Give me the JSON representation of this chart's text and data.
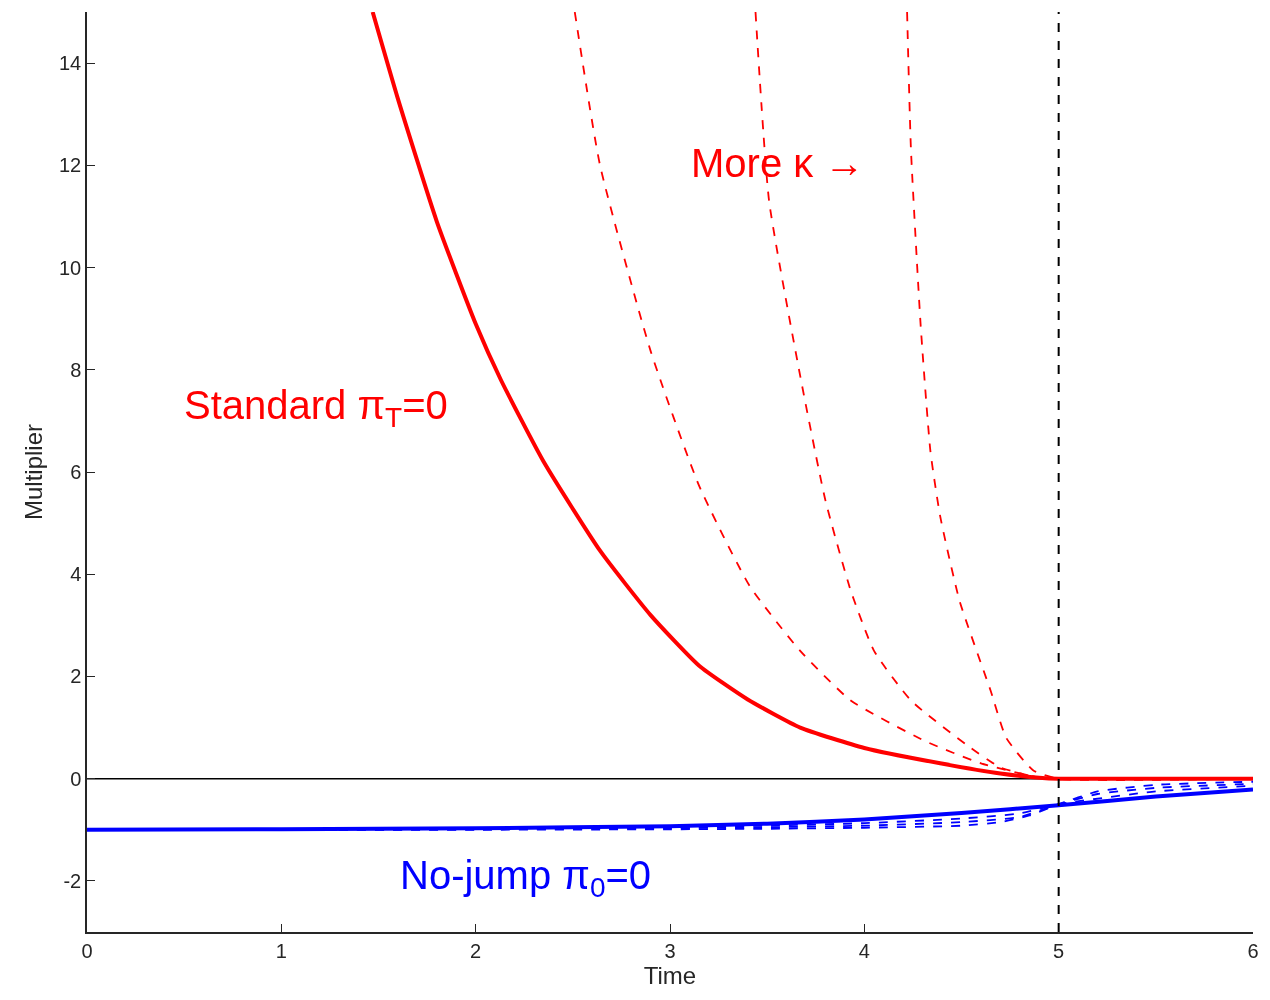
{
  "chart_data": {
    "type": "line",
    "xlabel": "Time",
    "ylabel": "Multiplier",
    "xlim": [
      0,
      6
    ],
    "ylim": [
      -3,
      15
    ],
    "xticks": [
      0,
      1,
      2,
      3,
      4,
      5,
      6
    ],
    "yticks": [
      -2,
      0,
      2,
      4,
      6,
      8,
      10,
      12,
      14
    ],
    "grid": false,
    "legend": false,
    "series": [
      {
        "name": "Standard π$_{T}$=0",
        "color": "#ff0000",
        "line_style": "solid",
        "x": [
          1.47,
          1.6,
          1.8,
          2.0,
          2.13,
          2.35,
          2.64,
          2.9,
          3.15,
          3.4,
          3.67,
          4.0,
          4.39,
          4.7,
          4.9,
          5.0,
          5.5,
          6.0
        ],
        "values": [
          15.0,
          13.3,
          10.9,
          8.9,
          7.8,
          6.2,
          4.46,
          3.2,
          2.21,
          1.55,
          1.0,
          0.6,
          0.3,
          0.1,
          0.02,
          0,
          0,
          0
        ]
      },
      {
        "color": "#ff0000",
        "line_style": "dashed",
        "x": [
          2.51,
          2.64,
          2.9,
          3.15,
          3.41,
          3.67,
          3.93,
          4.31,
          4.6,
          4.9,
          5.0,
          6.0
        ],
        "values": [
          15.0,
          12.0,
          8.37,
          5.73,
          3.77,
          2.5,
          1.53,
          0.74,
          0.3,
          0.02,
          0,
          0
        ]
      },
      {
        "color": "#ff0000",
        "line_style": "dashed",
        "x": [
          3.44,
          3.51,
          3.67,
          3.8,
          3.93,
          4.05,
          4.24,
          4.53,
          4.7,
          4.9,
          5.0,
          6.0
        ],
        "values": [
          15.0,
          11.3,
          7.88,
          5.44,
          3.68,
          2.5,
          1.53,
          0.65,
          0.22,
          0.02,
          0,
          0
        ]
      },
      {
        "color": "#ff0000",
        "line_style": "dashed",
        "x": [
          4.22,
          4.24,
          4.29,
          4.34,
          4.39,
          4.49,
          4.65,
          4.73,
          4.87,
          5.0,
          6.0
        ],
        "values": [
          15.0,
          12.3,
          8.86,
          6.41,
          5.14,
          3.48,
          1.72,
          0.8,
          0.16,
          0,
          0
        ]
      },
      {
        "name": "No-jump π$_{0}$=0",
        "color": "#0000ff",
        "line_style": "solid",
        "x": [
          0,
          1,
          2,
          3,
          3.5,
          4,
          4.5,
          5,
          5.5,
          6
        ],
        "values": [
          -1.0,
          -0.99,
          -0.97,
          -0.93,
          -0.88,
          -0.8,
          -0.67,
          -0.52,
          -0.35,
          -0.21
        ]
      },
      {
        "color": "#0000ff",
        "line_style": "dashed",
        "x": [
          0,
          1,
          2,
          3,
          3.5,
          4,
          4.5,
          4.8,
          5,
          5.5,
          6
        ],
        "values": [
          -1.0,
          -1.0,
          -0.98,
          -0.95,
          -0.92,
          -0.87,
          -0.78,
          -0.68,
          -0.5,
          -0.25,
          -0.14
        ]
      },
      {
        "color": "#0000ff",
        "line_style": "dashed",
        "x": [
          0,
          1,
          2,
          3,
          3.5,
          4,
          4.5,
          4.8,
          5,
          5.2,
          5.5,
          6
        ],
        "values": [
          -1.0,
          -1.0,
          -0.99,
          -0.97,
          -0.95,
          -0.92,
          -0.85,
          -0.75,
          -0.5,
          -0.3,
          -0.18,
          -0.1
        ]
      },
      {
        "color": "#0000ff",
        "line_style": "dashed",
        "x": [
          0,
          1,
          2,
          3,
          3.5,
          4,
          4.5,
          4.7,
          4.85,
          5,
          5.2,
          5.5,
          6
        ],
        "values": [
          -1.0,
          -1.0,
          -1.0,
          -0.99,
          -0.98,
          -0.96,
          -0.92,
          -0.85,
          -0.72,
          -0.5,
          -0.25,
          -0.12,
          -0.06
        ]
      }
    ],
    "ref_lines": [
      {
        "axis": "y",
        "value": 0,
        "color": "#000000",
        "line_style": "solid"
      },
      {
        "axis": "x",
        "value": 5,
        "color": "#000000",
        "line_style": "dashed"
      }
    ],
    "annotations": [
      "More κ →"
    ]
  }
}
